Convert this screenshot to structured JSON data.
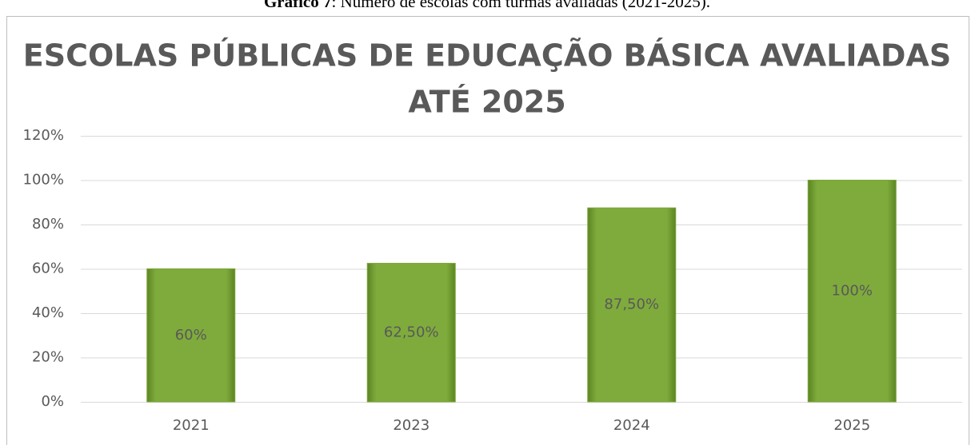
{
  "chart_data": {
    "type": "bar",
    "caption_label": "Gráfico 7",
    "caption_text": ": Número de escolas com turmas avaliadas (2021-2025).",
    "title": [
      "ESCOLAS PÚBLICAS DE EDUCAÇÃO BÁSICA AVALIADAS",
      "ATÉ 2025"
    ],
    "categories": [
      "2021",
      "2023",
      "2024",
      "2025"
    ],
    "values": [
      60,
      62.5,
      87.5,
      100
    ],
    "value_labels": [
      "60%",
      "62,50%",
      "87,50%",
      "100%"
    ],
    "color": "#7aa538",
    "ylim": [
      0,
      120
    ],
    "yticks": [
      {
        "value": 0,
        "label": "0%"
      },
      {
        "value": 20,
        "label": "20%"
      },
      {
        "value": 40,
        "label": "40%"
      },
      {
        "value": 60,
        "label": "60%"
      },
      {
        "value": 80,
        "label": "80%"
      },
      {
        "value": 100,
        "label": "100%"
      },
      {
        "value": 120,
        "label": "120%"
      }
    ],
    "grid": true
  }
}
